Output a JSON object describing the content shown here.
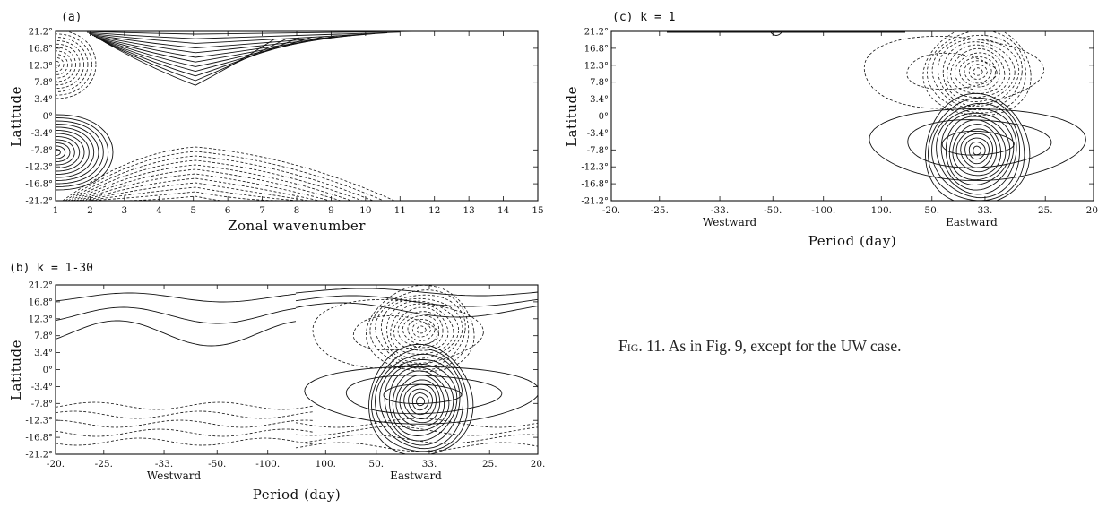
{
  "figure": {
    "caption_label": "Fig. 11.",
    "caption_text": "As in Fig. 9, except for the UW case."
  },
  "panels": {
    "a": {
      "title": "(a)",
      "ylabel": "Latitude",
      "xlabel": "Zonal wavenumber",
      "yticks": [
        "21.2°",
        "16.8°",
        "12.3°",
        "7.8°",
        "3.4°",
        "0°",
        "-3.4°",
        "-7.8°",
        "-12.3°",
        "-16.8°",
        "-21.2°"
      ],
      "xticks": [
        "1",
        "2",
        "3",
        "4",
        "5",
        "6",
        "7",
        "8",
        "9",
        "10",
        "11",
        "12",
        "13",
        "14",
        "15"
      ]
    },
    "b": {
      "title": "(b) k = 1-30",
      "ylabel": "Latitude",
      "xlabel": "Period (day)",
      "yticks": [
        "21.2°",
        "16.8°",
        "12.3°",
        "7.8°",
        "3.4°",
        "0°",
        "-3.4°",
        "-7.8°",
        "-12.3°",
        "-16.8°",
        "-21.2°"
      ],
      "xticks": [
        "-20.",
        "-25.",
        "-33.",
        "-50.",
        "-100.",
        "100.",
        "50.",
        "33.",
        "25.",
        "20."
      ],
      "westward": "Westward",
      "eastward": "Eastward"
    },
    "c": {
      "title": "(c) k = 1",
      "ylabel": "Latitude",
      "xlabel": "Period (day)",
      "yticks": [
        "21.2°",
        "16.8°",
        "12.3°",
        "7.8°",
        "3.4°",
        "0°",
        "-3.4°",
        "-7.8°",
        "-12.3°",
        "-16.8°",
        "-21.2°"
      ],
      "xticks": [
        "-20.",
        "-25.",
        "-33.",
        "-50.",
        "-100.",
        "100.",
        "50.",
        "33.",
        "25.",
        "20."
      ],
      "westward": "Westward",
      "eastward": "Eastward"
    }
  }
}
